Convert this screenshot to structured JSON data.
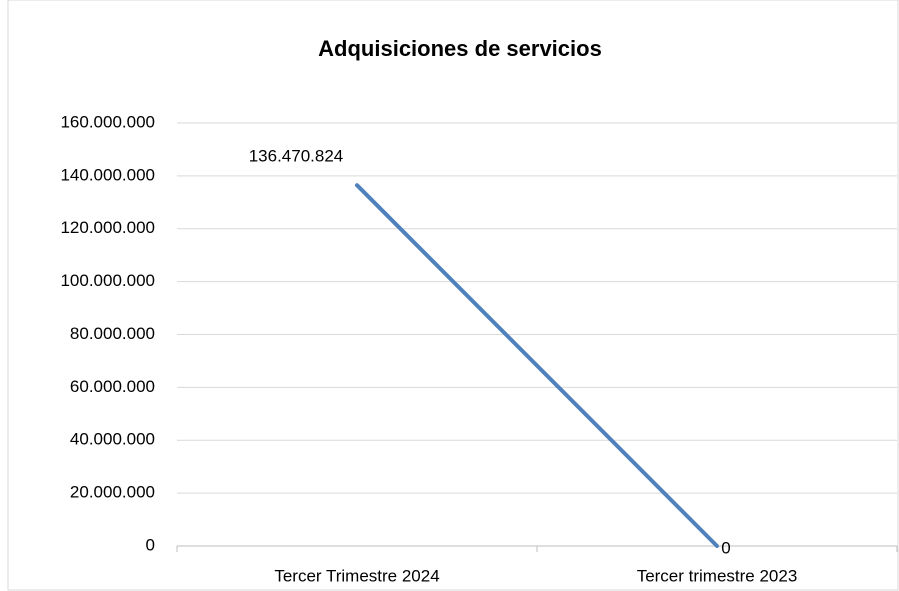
{
  "chart_data": {
    "type": "line",
    "title": "Adquisiciones de servicios",
    "categories": [
      "Tercer Trimestre 2024",
      "Tercer trimestre 2023"
    ],
    "series": [
      {
        "name": "Adquisiciones de servicios",
        "color": "#4f81bd",
        "values": [
          136470824,
          0
        ],
        "value_labels": [
          "136.470.824",
          "0"
        ]
      }
    ],
    "ylim": [
      0,
      160000000
    ],
    "yticks": [
      0,
      {
        "value": 20000000,
        "label": "20.000.000"
      },
      {
        "value": 40000000,
        "label": "40.000.000"
      },
      {
        "value": 60000000,
        "label": "60.000.000"
      },
      {
        "value": 80000000,
        "label": "80.000.000"
      },
      {
        "value": 100000000,
        "label": "100.000.000"
      },
      {
        "value": 120000000,
        "label": "120.000.000"
      },
      {
        "value": 140000000,
        "label": "140.000.000"
      },
      {
        "value": 160000000,
        "label": "160.000.000"
      }
    ],
    "grid": true
  }
}
